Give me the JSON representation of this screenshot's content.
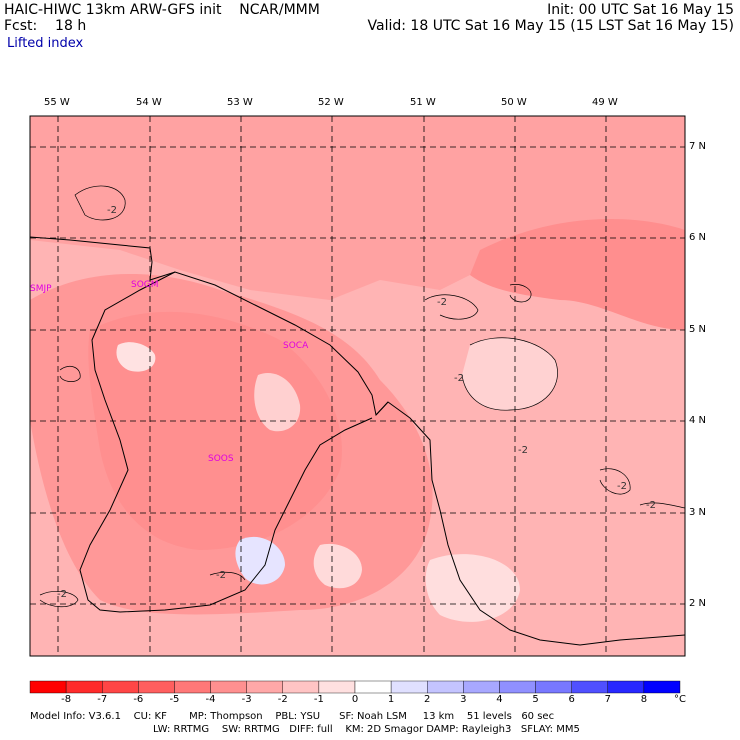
{
  "header": {
    "left_line1": "HAIC-HIWC 13km ARW-GFS init    NCAR/MMM",
    "left_line2": "Fcst:    18 h",
    "right_line1": "Init: 00 UTC Sat 16 May 15",
    "right_line2": "Valid: 18 UTC Sat 16 May 15 (15 LST Sat 16 May 15)",
    "field_name": "Lifted index"
  },
  "map": {
    "longitude_labels": [
      "55 W",
      "54 W",
      "53 W",
      "52 W",
      "51 W",
      "50 W",
      "49 W"
    ],
    "latitude_labels": [
      "7 N",
      "6 N",
      "5 N",
      "4 N",
      "3 N",
      "2 N"
    ],
    "stations": [
      "SMJP",
      "SOGM",
      "SOCA",
      "SOOS"
    ],
    "contour_labels": [
      "-2",
      "-2",
      "-2",
      "-2",
      "-2",
      "-2",
      "-2",
      "-2",
      "-2"
    ]
  },
  "colorbar": {
    "levels": [
      "-8",
      "-7",
      "-6",
      "-5",
      "-4",
      "-3",
      "-2",
      "-1",
      "0",
      "1",
      "2",
      "3",
      "4",
      "5",
      "6",
      "7",
      "8"
    ],
    "unit": "°C",
    "colors": [
      "#ff0000",
      "#ff2b2b",
      "#ff4646",
      "#ff5f5f",
      "#ff7878",
      "#ff9090",
      "#ffa8a8",
      "#ffc4c4",
      "#ffe0e0",
      "#ffffff",
      "#e0e0ff",
      "#c4c4ff",
      "#a8a8ff",
      "#9090ff",
      "#7878ff",
      "#5050ff",
      "#2828ff",
      "#0000ff"
    ]
  },
  "footer": {
    "line1": "Model Info: V3.6.1    CU: KF       MP: Thompson    PBL: YSU      SF: Noah LSM     13 km    51 levels   60 sec",
    "line2": "LW: RRTMG    SW: RRTMG   DIFF: full    KM: 2D Smagor DAMP: Rayleigh3   SFLAY: MM5"
  }
}
